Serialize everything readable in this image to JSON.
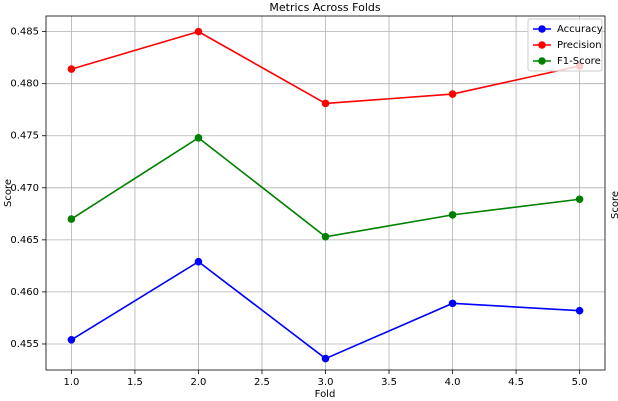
{
  "chart_data": {
    "type": "line",
    "title": "Metrics Across Folds",
    "x_label": "Fold",
    "y_label": "Score",
    "secondary_y_label": "Score",
    "x": [
      1,
      2,
      3,
      4,
      5
    ],
    "series": [
      {
        "name": "Accuracy",
        "color": "#0000ff",
        "values": [
          0.4554,
          0.4629,
          0.4536,
          0.4589,
          0.4582
        ]
      },
      {
        "name": "Precision",
        "color": "#ff0000",
        "values": [
          0.4814,
          0.485,
          0.4781,
          0.479,
          0.4817
        ]
      },
      {
        "name": "F1-Score",
        "color": "#008000",
        "values": [
          0.467,
          0.4748,
          0.4653,
          0.4674,
          0.4689
        ]
      }
    ],
    "xlim": [
      0.8,
      5.2
    ],
    "xticks": [
      {
        "value": 1,
        "label": "1.0"
      },
      {
        "value": 1.5,
        "label": "1.5"
      },
      {
        "value": 2,
        "label": "2.0"
      },
      {
        "value": 2.5,
        "label": "2.5"
      },
      {
        "value": 3,
        "label": "3.0"
      },
      {
        "value": 3.5,
        "label": "3.5"
      },
      {
        "value": 4,
        "label": "4.0"
      },
      {
        "value": 4.5,
        "label": "4.5"
      },
      {
        "value": 5,
        "label": "5.0"
      }
    ],
    "ylim": [
      0.4525,
      0.4865
    ],
    "yticks": [
      0.455,
      {
        "value": 0.46,
        "label": "0.460"
      },
      0.465,
      {
        "value": 0.47,
        "label": "0.470"
      },
      0.475,
      {
        "value": 0.48,
        "label": "0.480"
      },
      0.485
    ],
    "grid": true,
    "legend": "upper right"
  }
}
